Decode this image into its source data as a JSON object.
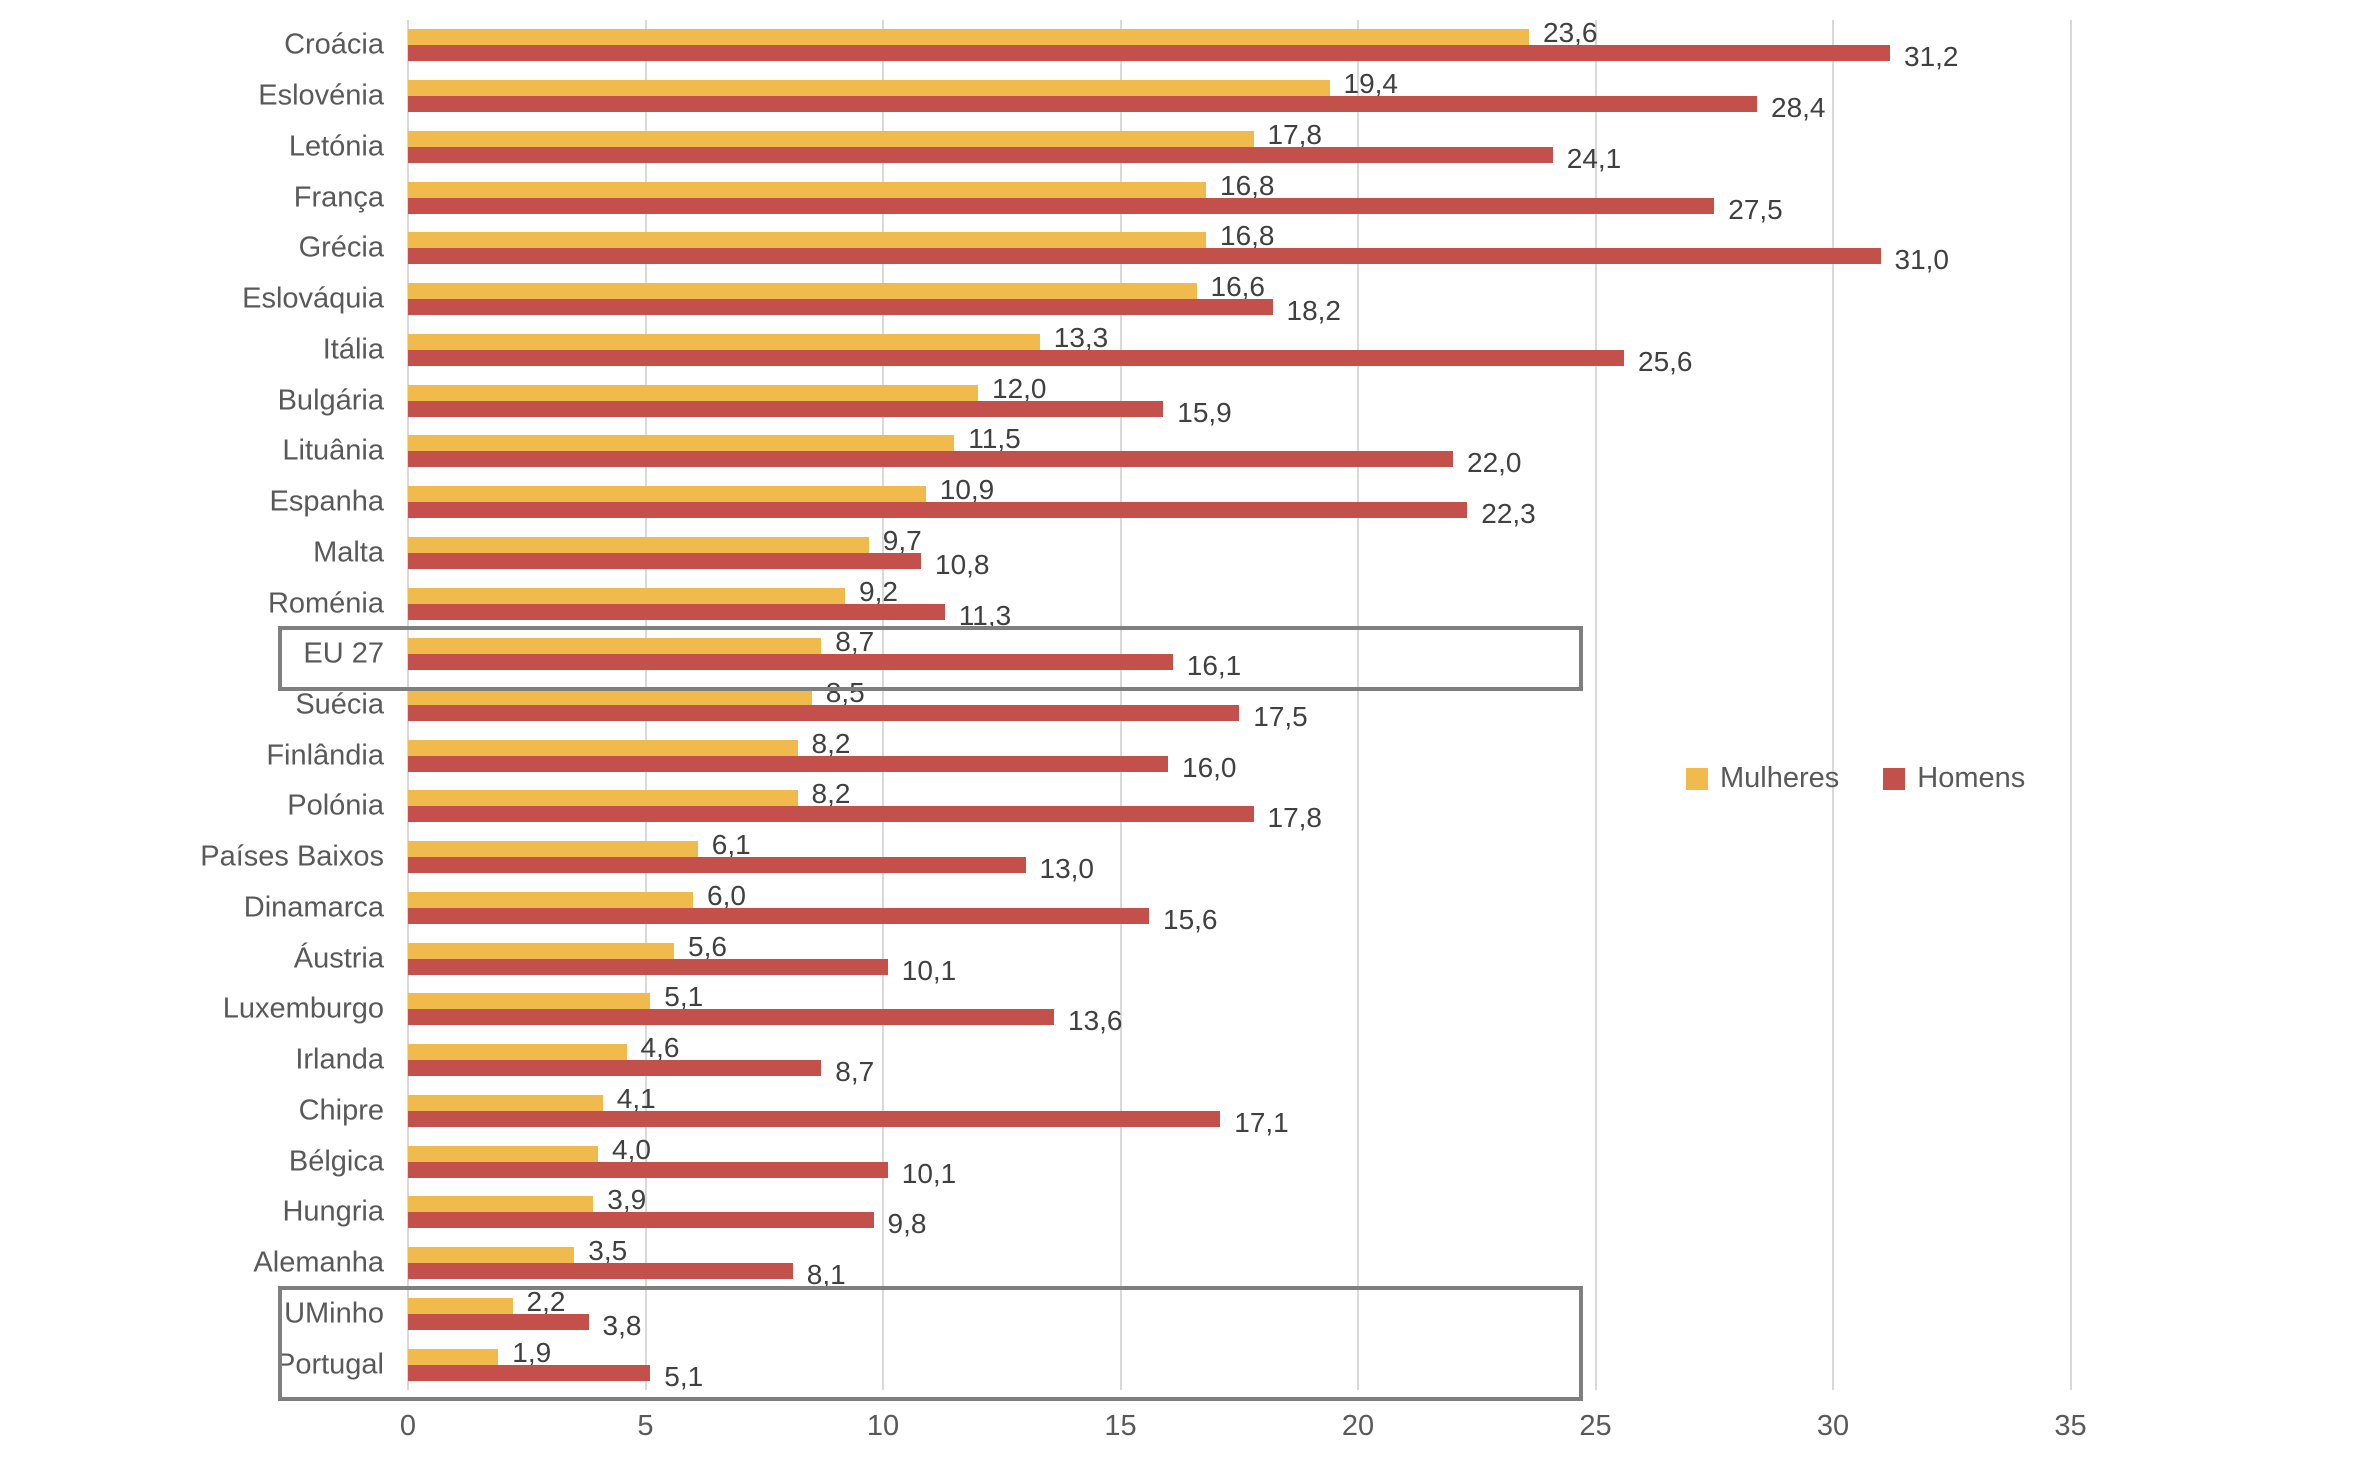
{
  "chart_data": {
    "type": "bar",
    "orientation": "horizontal",
    "title": "",
    "categories": [
      "Croácia",
      "Eslovénia",
      "Letónia",
      "França",
      "Grécia",
      "Eslováquia",
      "Itália",
      "Bulgária",
      "Lituânia",
      "Espanha",
      "Malta",
      "Roménia",
      "EU 27",
      "Suécia",
      "Finlândia",
      "Polónia",
      "Países Baixos",
      "Dinamarca",
      "Áustria",
      "Luxemburgo",
      "Irlanda",
      "Chipre",
      "Bélgica",
      "Hungria",
      "Alemanha",
      "UMinho",
      "Portugal"
    ],
    "series": [
      {
        "name": "Mulheres",
        "color": "#f0ba4d",
        "values": [
          23.6,
          19.4,
          17.8,
          16.8,
          16.8,
          16.6,
          13.3,
          12.0,
          11.5,
          10.9,
          9.7,
          9.2,
          8.7,
          8.5,
          8.2,
          8.2,
          6.1,
          6.0,
          5.6,
          5.1,
          4.6,
          4.1,
          4.0,
          3.9,
          3.5,
          2.2,
          1.9
        ],
        "value_labels": [
          "23,6",
          "19,4",
          "17,8",
          "16,8",
          "16,8",
          "16,6",
          "13,3",
          "12,0",
          "11,5",
          "10,9",
          "9,7",
          "9,2",
          "8,7",
          "8,5",
          "8,2",
          "8,2",
          "6,1",
          "6,0",
          "5,6",
          "5,1",
          "4,6",
          "4,1",
          "4,0",
          "3,9",
          "3,5",
          "2,2",
          "1,9"
        ]
      },
      {
        "name": "Homens",
        "color": "#c4504c",
        "values": [
          31.2,
          28.4,
          24.1,
          27.5,
          31.0,
          18.2,
          25.6,
          15.9,
          22.0,
          22.3,
          10.8,
          11.3,
          16.1,
          17.5,
          16.0,
          17.8,
          13.0,
          15.6,
          10.1,
          13.6,
          8.7,
          17.1,
          10.1,
          9.8,
          8.1,
          3.8,
          5.1
        ],
        "value_labels": [
          "31,2",
          "28,4",
          "24,1",
          "27,5",
          "31,0",
          "18,2",
          "25,6",
          "15,9",
          "22,0",
          "22,3",
          "10,8",
          "11,3",
          "16,1",
          "17,5",
          "16,0",
          "17,8",
          "13,0",
          "15,6",
          "10,1",
          "13,6",
          "8,7",
          "17,1",
          "10,1",
          "9,8",
          "8,1",
          "3,8",
          "5,1"
        ]
      }
    ],
    "xlim": [
      0,
      35
    ],
    "x_ticks": [
      0,
      5,
      10,
      15,
      20,
      25,
      30,
      35
    ],
    "x_tick_labels": [
      "0",
      "5",
      "10",
      "15",
      "20",
      "25",
      "30",
      "35"
    ],
    "grid": "vertical",
    "legend_position": "middle-right",
    "highlight_boxes": [
      {
        "categories": [
          "EU 27"
        ],
        "border_color": "#7f7f7f"
      },
      {
        "categories": [
          "UMinho",
          "Portugal"
        ],
        "border_color": "#7f7f7f"
      }
    ],
    "colors": {
      "gridline": "#d9d9d9",
      "category_label_text": "#595959",
      "value_label_text": "#404040",
      "axis_tick_text": "#595959"
    }
  }
}
